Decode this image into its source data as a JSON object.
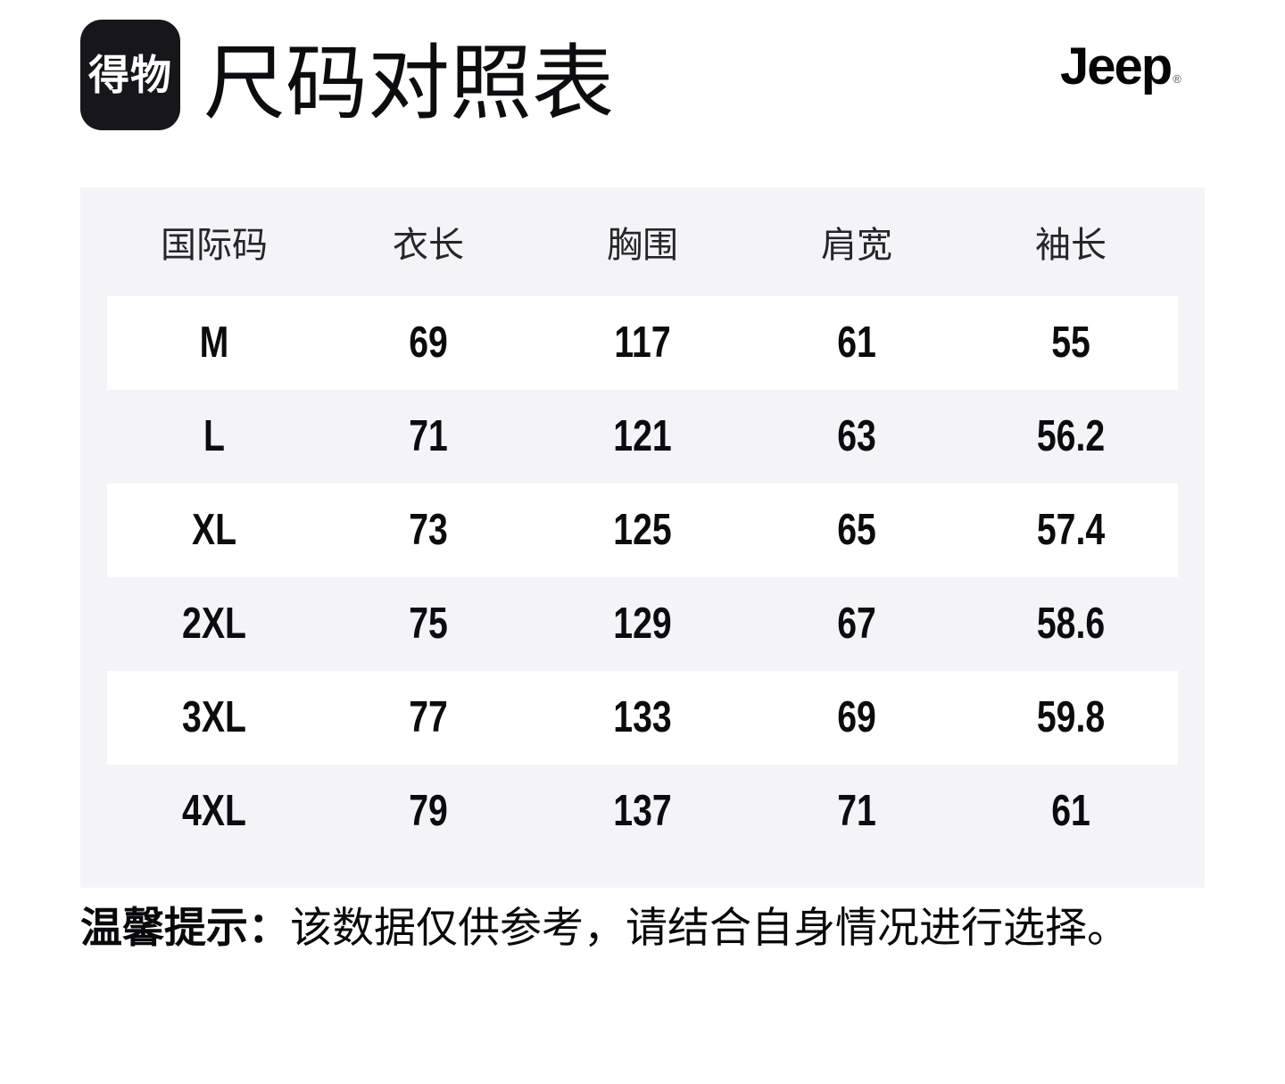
{
  "header": {
    "app_logo_text": "得物",
    "title": "尺码对照表",
    "brand_text": "Jeep",
    "brand_registered_mark": "®"
  },
  "colors": {
    "logo_bg": "#17171b",
    "logo_text": "#ffffff",
    "panel_bg": "#f4f4f7",
    "row_alt_bg": "#ffffff",
    "cell_text": "#0c0c0e",
    "column_header_text": "#26262a"
  },
  "size_chart": {
    "columns": [
      "国际码",
      "衣长",
      "胸围",
      "肩宽",
      "袖长"
    ],
    "rows": [
      {
        "size": "M",
        "values": [
          "69",
          "117",
          "61",
          "55"
        ]
      },
      {
        "size": "L",
        "values": [
          "71",
          "121",
          "63",
          "56.2"
        ]
      },
      {
        "size": "XL",
        "values": [
          "73",
          "125",
          "65",
          "57.4"
        ]
      },
      {
        "size": "2XL",
        "values": [
          "75",
          "129",
          "67",
          "58.6"
        ]
      },
      {
        "size": "3XL",
        "values": [
          "77",
          "133",
          "69",
          "59.8"
        ]
      },
      {
        "size": "4XL",
        "values": [
          "79",
          "137",
          "71",
          "61"
        ]
      }
    ]
  },
  "footnote": {
    "label": "温馨提示：",
    "text": "该数据仅供参考，请结合自身情况进行选择。"
  },
  "chart_data": {
    "type": "table",
    "title": "尺码对照表",
    "columns": [
      "国际码",
      "衣长",
      "胸围",
      "肩宽",
      "袖长"
    ],
    "rows": [
      [
        "M",
        69,
        117,
        61,
        55
      ],
      [
        "L",
        71,
        121,
        63,
        56.2
      ],
      [
        "XL",
        73,
        125,
        65,
        57.4
      ],
      [
        "2XL",
        75,
        129,
        67,
        58.6
      ],
      [
        "3XL",
        77,
        133,
        69,
        59.8
      ],
      [
        "4XL",
        79,
        137,
        71,
        61
      ]
    ]
  }
}
